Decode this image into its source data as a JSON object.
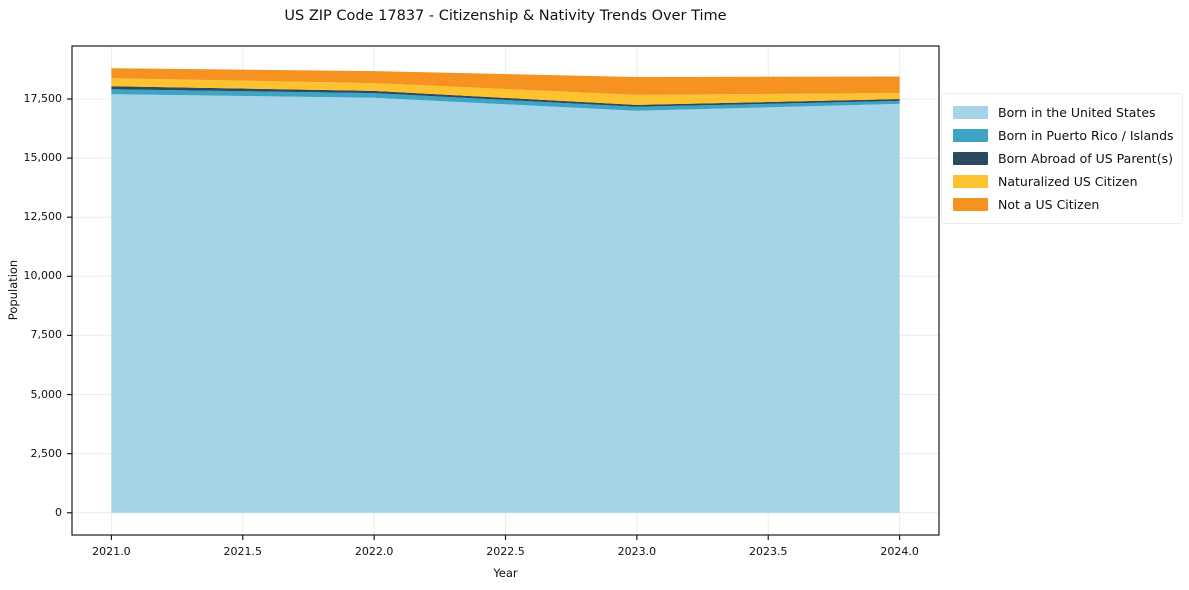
{
  "figure": {
    "title": "US ZIP Code 17837 - Citizenship & Nativity Trends Over Time",
    "xlabel": "Year",
    "ylabel": "Population"
  },
  "chart_data": {
    "type": "area",
    "stacked": true,
    "title": "US ZIP Code 17837 - Citizenship & Nativity Trends Over Time",
    "xlabel": "Year",
    "ylabel": "Population",
    "x": [
      2021,
      2022,
      2023,
      2024
    ],
    "series": [
      {
        "name": "Born in the United States",
        "color": "#a5d3e8",
        "values": [
          17700,
          17550,
          17000,
          17290
        ]
      },
      {
        "name": "Born in Puerto Rico / Islands",
        "color": "#3da4c4",
        "values": [
          210,
          200,
          170,
          130
        ]
      },
      {
        "name": "Born Abroad of US Parent(s)",
        "color": "#2b4a5e",
        "values": [
          130,
          90,
          80,
          80
        ]
      },
      {
        "name": "Naturalized US Citizen",
        "color": "#fcc22f",
        "values": [
          340,
          330,
          420,
          250
        ]
      },
      {
        "name": "Not a US Citizen",
        "color": "#f6921f",
        "values": [
          420,
          510,
          760,
          700
        ]
      }
    ],
    "totals": [
      18800,
      18680,
      18430,
      18450
    ],
    "xlim": [
      2020.85,
      2024.15
    ],
    "ylim": [
      -940,
      19740
    ],
    "xticks": [
      {
        "v": 2021.0,
        "label": "2021.0"
      },
      {
        "v": 2021.5,
        "label": "2021.5"
      },
      {
        "v": 2022.0,
        "label": "2022.0"
      },
      {
        "v": 2022.5,
        "label": "2022.5"
      },
      {
        "v": 2023.0,
        "label": "2023.0"
      },
      {
        "v": 2023.5,
        "label": "2023.5"
      },
      {
        "v": 2024.0,
        "label": "2024.0"
      }
    ],
    "yticks": [
      {
        "v": 0,
        "label": "0"
      },
      {
        "v": 2500,
        "label": "2,500"
      },
      {
        "v": 5000,
        "label": "5,000"
      },
      {
        "v": 7500,
        "label": "7,500"
      },
      {
        "v": 10000,
        "label": "10,000"
      },
      {
        "v": 12500,
        "label": "12,500"
      },
      {
        "v": 15000,
        "label": "15,000"
      },
      {
        "v": 17500,
        "label": "17,500"
      }
    ],
    "grid": true,
    "grid_color": "#ececec",
    "spine_color": "#1a1a1a",
    "legend_position": "right"
  }
}
